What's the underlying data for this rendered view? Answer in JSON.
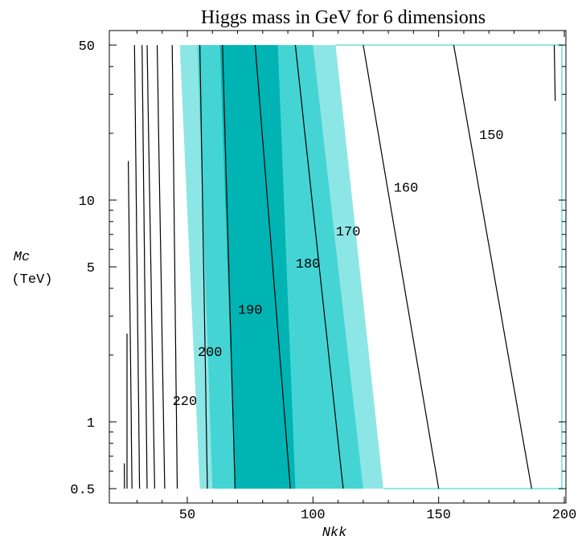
{
  "chart_data": {
    "type": "contour",
    "title": "Higgs mass in GeV for 6 dimensions",
    "xlabel": "Nkk",
    "ylabel": "Mc",
    "ylabel_unit": "(TeV)",
    "xlim": [
      20,
      200
    ],
    "ylim": [
      0.4,
      50
    ],
    "yscale": "log",
    "x_ticks": [
      50,
      100,
      150,
      200
    ],
    "x_tick_labels": [
      "50",
      "100",
      "150",
      "200"
    ],
    "y_ticks": [
      0.5,
      1,
      5,
      10,
      50
    ],
    "y_tick_labels": [
      "0.5",
      "1",
      "5",
      "10",
      "50"
    ],
    "colors": {
      "band_outer": "#8de6e6",
      "band_mid": "#45d4d4",
      "band_inner": "#00b4b4",
      "contour": "#000000",
      "frame_right": "#8de6e6"
    },
    "bands": [
      {
        "level": "outer",
        "x_at_y_low": [
          55,
          128
        ],
        "x_at_y_high": [
          47,
          109
        ]
      },
      {
        "level": "mid",
        "x_at_y_low": [
          60,
          120
        ],
        "x_at_y_high": [
          54,
          100
        ]
      },
      {
        "level": "inner",
        "x_at_y_low": [
          69,
          93
        ],
        "x_at_y_high": [
          63,
          86
        ]
      }
    ],
    "contours": [
      {
        "label": "220",
        "x_at_y_low": [
          46,
          46
        ],
        "x_at_y_high": [
          44,
          44
        ],
        "label_pos": [
          49,
          1.2
        ]
      },
      {
        "label": "200",
        "x_at_y_low": [
          58,
          58
        ],
        "x_at_y_high": [
          55,
          55
        ],
        "label_pos": [
          59,
          2.0
        ]
      },
      {
        "label": "190",
        "x_at_y_low": [
          69,
          69
        ],
        "x_at_y_high": [
          64,
          64
        ],
        "label_pos": [
          75,
          3.1
        ]
      },
      {
        "label": "180",
        "x_at_y_low": [
          91,
          91
        ],
        "x_at_y_high": [
          77,
          77
        ],
        "label_pos": [
          98,
          5.0
        ]
      },
      {
        "label": "170",
        "x_at_y_low": [
          112,
          112
        ],
        "x_at_y_high": [
          93,
          93
        ],
        "label_pos": [
          114,
          7.0
        ]
      },
      {
        "label": "160",
        "x_at_y_low": [
          150,
          150
        ],
        "x_at_y_high": [
          120,
          120
        ],
        "label_pos": [
          137,
          11.0
        ]
      },
      {
        "label": "150",
        "x_at_y_low": [
          187,
          187
        ],
        "x_at_y_high": [
          156,
          156
        ],
        "label_pos": [
          171,
          19.0
        ]
      }
    ],
    "extra_contours": [
      {
        "x_at_y_low": [
          25,
          25
        ],
        "x_at_y_high": [
          24,
          24
        ],
        "y_range": [
          0.5,
          0.65
        ]
      },
      {
        "x_at_y_low": [
          26,
          26
        ],
        "x_at_y_high": [
          26,
          26
        ],
        "y_range": [
          0.5,
          2.5
        ]
      },
      {
        "x_at_y_low": [
          28,
          28
        ],
        "x_at_y_high": [
          26,
          26
        ],
        "y_range": [
          0.5,
          15
        ]
      },
      {
        "x_at_y_low": [
          31,
          31
        ],
        "x_at_y_high": [
          29,
          29
        ],
        "y_range": [
          0.5,
          50
        ]
      },
      {
        "x_at_y_low": [
          34,
          34
        ],
        "x_at_y_high": [
          32,
          32
        ],
        "y_range": [
          0.5,
          50
        ]
      },
      {
        "x_at_y_low": [
          37,
          37
        ],
        "x_at_y_high": [
          34,
          34
        ],
        "y_range": [
          0.5,
          50
        ]
      },
      {
        "x_at_y_low": [
          41,
          41
        ],
        "x_at_y_high": [
          38,
          38
        ],
        "y_range": [
          0.5,
          50
        ]
      },
      {
        "x_at_y_low": [
          199,
          199
        ],
        "x_at_y_high": [
          196,
          196
        ],
        "y_range": [
          28,
          50
        ]
      }
    ]
  }
}
